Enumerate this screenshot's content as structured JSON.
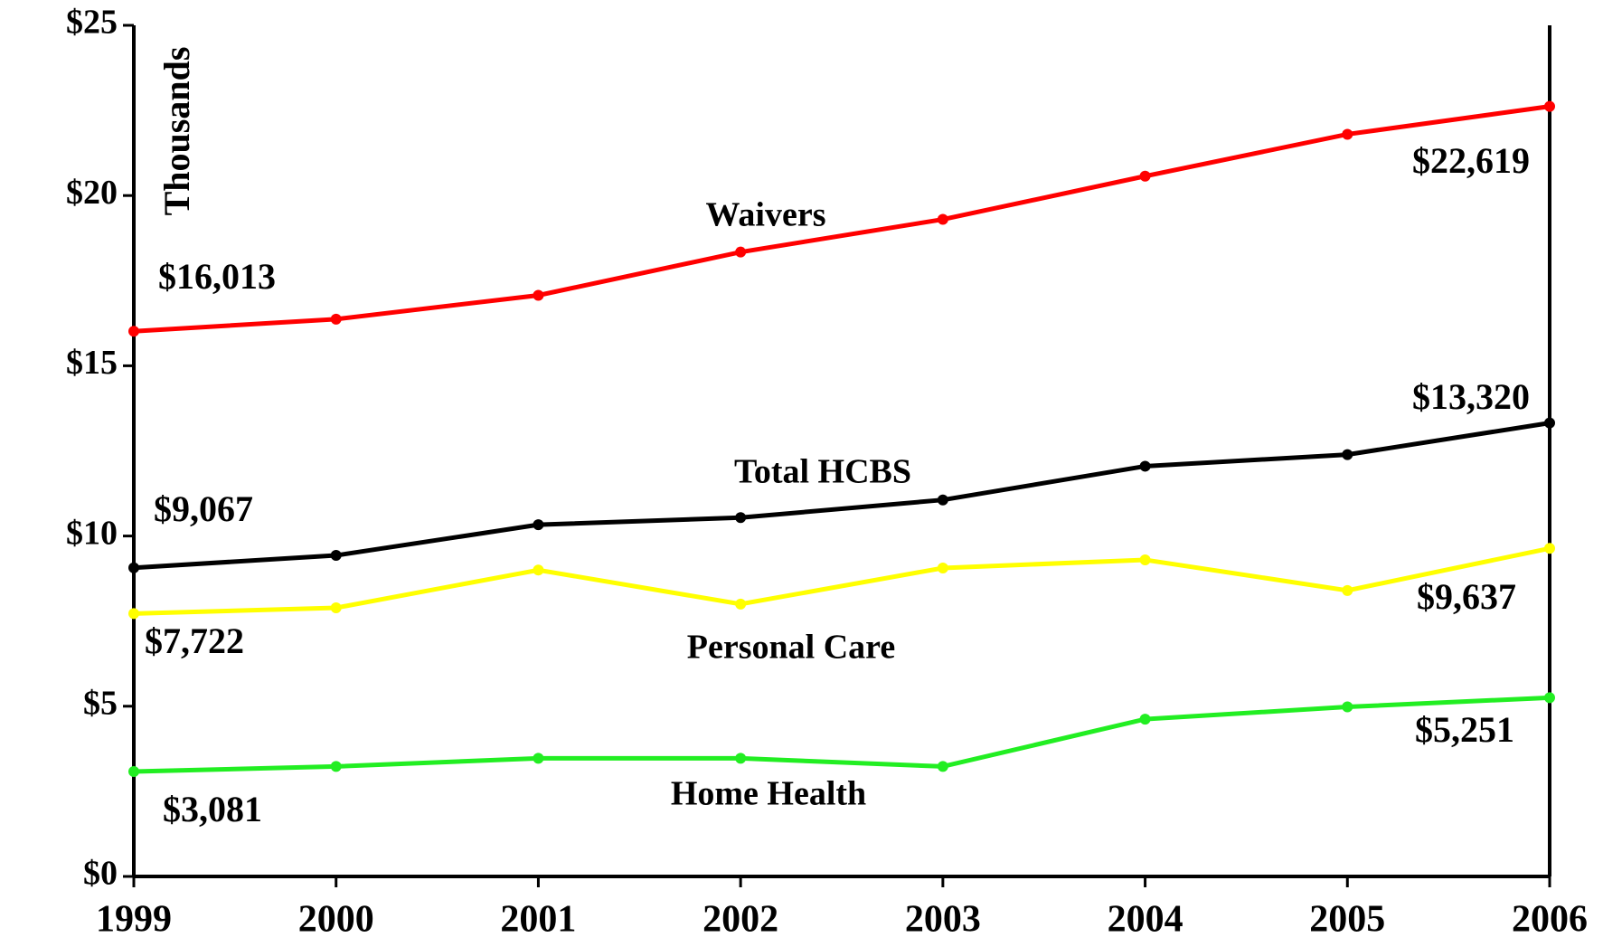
{
  "chart_data": {
    "type": "line",
    "y_axis_label": "Thousands",
    "categories": [
      "1999",
      "2000",
      "2001",
      "2002",
      "2003",
      "2004",
      "2005",
      "2006"
    ],
    "ylim": [
      0,
      25
    ],
    "yticks": [
      {
        "value": 0,
        "label": "$0"
      },
      {
        "value": 5,
        "label": "$5"
      },
      {
        "value": 10,
        "label": "$10"
      },
      {
        "value": 15,
        "label": "$15"
      },
      {
        "value": 20,
        "label": "$20"
      },
      {
        "value": 25,
        "label": "$25"
      }
    ],
    "series": [
      {
        "name": "Waivers",
        "color": "#ff0000",
        "values": [
          16.013,
          16.37,
          17.07,
          18.34,
          19.3,
          20.57,
          21.8,
          22.619
        ],
        "value_labels": [
          "$16,013",
          null,
          null,
          null,
          null,
          null,
          null,
          "$22,619"
        ]
      },
      {
        "name": "Total HCBS",
        "color": "#000000",
        "values": [
          9.067,
          9.43,
          10.33,
          10.54,
          11.06,
          12.05,
          12.39,
          13.32
        ],
        "value_labels": [
          "$9,067",
          null,
          null,
          null,
          null,
          null,
          null,
          "$13,320"
        ]
      },
      {
        "name": "Personal Care",
        "color": "#ffff00",
        "values": [
          7.722,
          7.89,
          9.0,
          8.0,
          9.06,
          9.3,
          8.4,
          9.637
        ],
        "value_labels": [
          "$7,722",
          null,
          null,
          null,
          null,
          null,
          null,
          "$9,637"
        ]
      },
      {
        "name": "Home Health",
        "color": "#22ee22",
        "values": [
          3.081,
          3.23,
          3.47,
          3.47,
          3.23,
          4.62,
          4.98,
          5.251
        ],
        "value_labels": [
          "$3,081",
          null,
          null,
          null,
          null,
          null,
          null,
          "$5,251"
        ]
      }
    ]
  }
}
